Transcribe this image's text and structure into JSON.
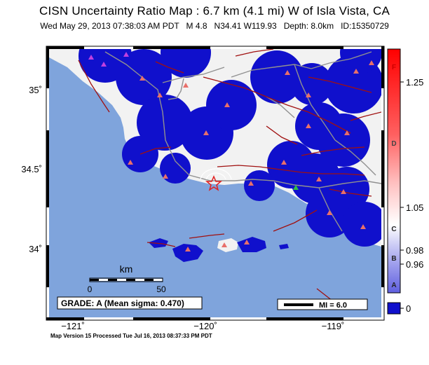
{
  "header": {
    "title": "CISN Uncertainty Ratio Map : 6.7 km (4.1 mi) W of Isla Vista, CA",
    "subtitle": "Wed May 29, 2013 07:38:03 AM PDT   M 4.8   N34.41 W119.93   Depth: 8.0km   ID:15350729"
  },
  "axes": {
    "x_ticks": [
      "−121˚",
      "−120˚",
      "−119˚"
    ],
    "y_ticks": [
      "35˚",
      "34.5˚",
      "34˚"
    ]
  },
  "scale_bar": {
    "unit": "km",
    "ticks": [
      "0",
      "50"
    ]
  },
  "grade_box": {
    "text": "GRADE: A (Mean sigma: 0.470)"
  },
  "mi_legend": {
    "text": "MI = 6.0"
  },
  "colorbar": {
    "grade_letters": [
      "F",
      "D",
      "C",
      "B",
      "A"
    ],
    "values": [
      "1.25",
      "1.05",
      "0.98",
      "0.96",
      "0"
    ]
  },
  "footer": {
    "text": "Map Version 15 Processed Tue Jul 16, 2013 08:37:33 PM PDT"
  },
  "colors": {
    "ocean": "#7fa4dc",
    "land_low": "#f2f2f2",
    "uncertainty_high": "#1010cc",
    "fault": "#a01010",
    "road": "#909090",
    "epicenter": "#e02020",
    "station": "#e8706a"
  }
}
